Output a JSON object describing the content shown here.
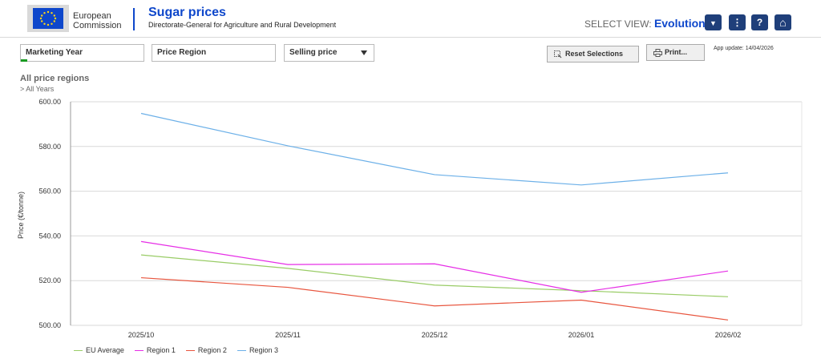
{
  "header": {
    "logo_line1": "European",
    "logo_line2": "Commission",
    "app_title": "Sugar prices",
    "app_subtitle": "Directorate-General for Agriculture and Rural Development",
    "select_view_label": "SELECT VIEW:",
    "select_view_value": "Evolution",
    "buttons": [
      {
        "icon": "dropdown-triangle-icon",
        "glyph": "▼"
      },
      {
        "icon": "more-options-icon",
        "glyph": "⋮"
      },
      {
        "icon": "help-icon",
        "glyph": "?"
      },
      {
        "icon": "home-icon",
        "glyph": "⌂"
      }
    ]
  },
  "filters": {
    "marketing_year": {
      "label": "Marketing Year",
      "progress": 0.05,
      "progress_color": "#1a9b22"
    },
    "price_region": {
      "label": "Price Region"
    },
    "selling_price": {
      "label": "Selling price"
    }
  },
  "toolbar": {
    "reset_label": "Reset Selections",
    "print_label": "Print...",
    "app_update": "App update: 14/04/2026"
  },
  "sheet": {
    "title": "All price regions",
    "breadcrumb": "> All Years"
  },
  "chart_data": {
    "type": "line",
    "x": [
      "2025/10",
      "2025/11",
      "2025/12",
      "2026/01",
      "2026/02"
    ],
    "ylabel": "Price (€/tonne)",
    "ylim": [
      500,
      600
    ],
    "yticks": [
      500,
      520,
      540,
      560,
      580,
      600
    ],
    "ytick_labels": [
      "500.00",
      "520.00",
      "540.00",
      "560.00",
      "580.00",
      "600.00"
    ],
    "grid": true,
    "legend_position": "bottom-left",
    "series": [
      {
        "name": "EU Average",
        "color": "#99cc66",
        "values": [
          531.5,
          525.5,
          518,
          515.5,
          512.8
        ]
      },
      {
        "name": "Region 1",
        "color": "#e62ee6",
        "values": [
          537.5,
          527.2,
          527.5,
          514.8,
          524.3
        ]
      },
      {
        "name": "Region 2",
        "color": "#e8553e",
        "values": [
          521.3,
          517,
          508.7,
          511.3,
          502.4
        ]
      },
      {
        "name": "Region 3",
        "color": "#6cb0e8",
        "values": [
          594.8,
          580.3,
          567.4,
          562.8,
          568.2
        ]
      }
    ]
  }
}
